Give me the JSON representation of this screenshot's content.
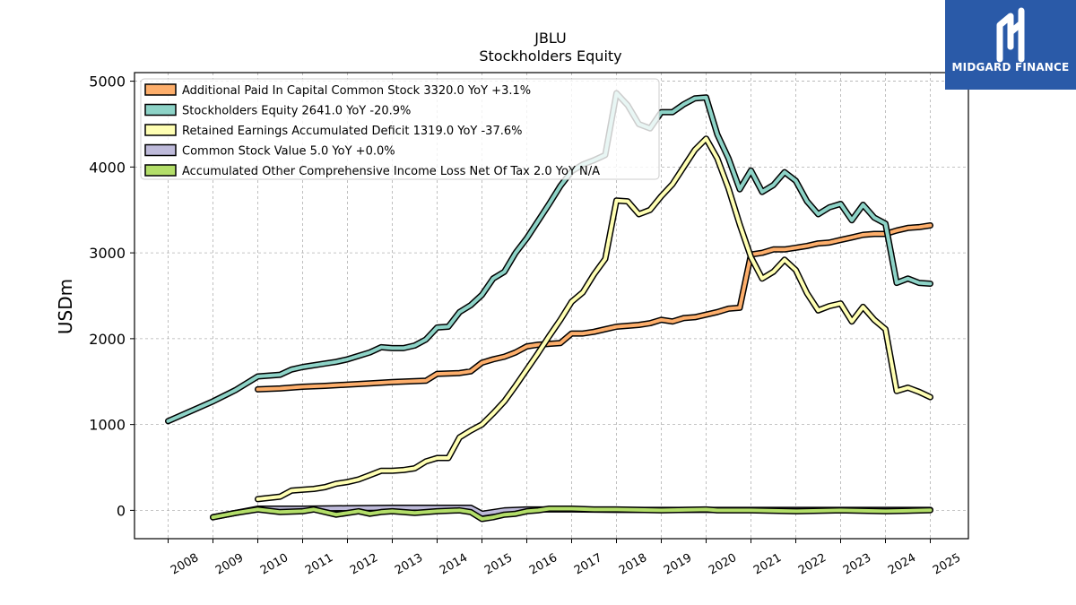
{
  "chart_data": {
    "type": "line",
    "title": "JBLU",
    "subtitle": "Stockholders  Equity",
    "ylabel": "USDm",
    "xlabel": "",
    "x_range": [
      2007.25,
      2025.85
    ],
    "ylim": [
      -330,
      5100
    ],
    "grid": true,
    "legend_position": "top-left",
    "x_ticks": [
      2008,
      2009,
      2010,
      2011,
      2012,
      2013,
      2014,
      2015,
      2016,
      2017,
      2018,
      2019,
      2020,
      2021,
      2022,
      2023,
      2024,
      2025
    ],
    "x_tick_labels": [
      "2008",
      "2009",
      "2010",
      "2011",
      "2012",
      "2013",
      "2014",
      "2015",
      "2016",
      "2017",
      "2018",
      "2019",
      "2020",
      "2021",
      "2022",
      "2023",
      "2024",
      "2025"
    ],
    "y_ticks": [
      0,
      1000,
      2000,
      3000,
      4000,
      5000
    ],
    "y_tick_labels": [
      "0",
      "1000",
      "2000",
      "3000",
      "4000",
      "5000"
    ],
    "series": [
      {
        "name": "Additional Paid In Capital Common Stock",
        "legend": "Additional Paid In Capital Common Stock  3320.0 YoY +3.1%",
        "color": "#fdae6b",
        "points": [
          [
            2010.0,
            1410
          ],
          [
            2010.5,
            1420
          ],
          [
            2011.0,
            1440
          ],
          [
            2011.5,
            1450
          ],
          [
            2012.0,
            1465
          ],
          [
            2012.5,
            1480
          ],
          [
            2013.0,
            1495
          ],
          [
            2013.5,
            1505
          ],
          [
            2013.75,
            1510
          ],
          [
            2014.0,
            1590
          ],
          [
            2014.5,
            1600
          ],
          [
            2014.75,
            1620
          ],
          [
            2015.0,
            1720
          ],
          [
            2015.25,
            1760
          ],
          [
            2015.5,
            1790
          ],
          [
            2015.75,
            1840
          ],
          [
            2016.0,
            1910
          ],
          [
            2016.25,
            1930
          ],
          [
            2016.5,
            1940
          ],
          [
            2016.75,
            1950
          ],
          [
            2017.0,
            2060
          ],
          [
            2017.25,
            2060
          ],
          [
            2017.5,
            2080
          ],
          [
            2017.75,
            2110
          ],
          [
            2018.0,
            2140
          ],
          [
            2018.5,
            2160
          ],
          [
            2018.75,
            2180
          ],
          [
            2019.0,
            2220
          ],
          [
            2019.25,
            2200
          ],
          [
            2019.5,
            2240
          ],
          [
            2019.75,
            2250
          ],
          [
            2020.0,
            2280
          ],
          [
            2020.25,
            2310
          ],
          [
            2020.5,
            2350
          ],
          [
            2020.75,
            2360
          ],
          [
            2021.0,
            2980
          ],
          [
            2021.25,
            3000
          ],
          [
            2021.5,
            3040
          ],
          [
            2021.75,
            3040
          ],
          [
            2022.0,
            3060
          ],
          [
            2022.25,
            3080
          ],
          [
            2022.5,
            3110
          ],
          [
            2022.75,
            3120
          ],
          [
            2023.0,
            3150
          ],
          [
            2023.25,
            3180
          ],
          [
            2023.5,
            3210
          ],
          [
            2023.75,
            3220
          ],
          [
            2024.0,
            3220
          ],
          [
            2024.25,
            3260
          ],
          [
            2024.5,
            3290
          ],
          [
            2024.75,
            3300
          ],
          [
            2025.0,
            3320
          ]
        ]
      },
      {
        "name": "Stockholders Equity",
        "legend": "Stockholders Equity  2641.0 YoY -20.9%",
        "color": "#8dd3c7",
        "points": [
          [
            2008.0,
            1040
          ],
          [
            2009.0,
            1270
          ],
          [
            2009.5,
            1400
          ],
          [
            2010.0,
            1560
          ],
          [
            2010.5,
            1580
          ],
          [
            2010.75,
            1640
          ],
          [
            2011.0,
            1670
          ],
          [
            2011.5,
            1710
          ],
          [
            2011.75,
            1730
          ],
          [
            2012.0,
            1760
          ],
          [
            2012.5,
            1840
          ],
          [
            2012.75,
            1900
          ],
          [
            2013.0,
            1890
          ],
          [
            2013.25,
            1890
          ],
          [
            2013.5,
            1920
          ],
          [
            2013.75,
            1990
          ],
          [
            2014.0,
            2130
          ],
          [
            2014.25,
            2140
          ],
          [
            2014.5,
            2310
          ],
          [
            2014.75,
            2390
          ],
          [
            2015.0,
            2510
          ],
          [
            2015.25,
            2700
          ],
          [
            2015.5,
            2780
          ],
          [
            2015.75,
            3000
          ],
          [
            2016.0,
            3170
          ],
          [
            2016.25,
            3370
          ],
          [
            2016.5,
            3570
          ],
          [
            2016.75,
            3780
          ],
          [
            2017.0,
            3950
          ],
          [
            2017.25,
            4030
          ],
          [
            2017.5,
            4080
          ],
          [
            2017.75,
            4140
          ],
          [
            2018.0,
            4860
          ],
          [
            2018.25,
            4720
          ],
          [
            2018.5,
            4500
          ],
          [
            2018.75,
            4450
          ],
          [
            2019.0,
            4640
          ],
          [
            2019.25,
            4640
          ],
          [
            2019.5,
            4730
          ],
          [
            2019.75,
            4800
          ],
          [
            2020.0,
            4810
          ],
          [
            2020.25,
            4380
          ],
          [
            2020.5,
            4100
          ],
          [
            2020.75,
            3740
          ],
          [
            2021.0,
            3960
          ],
          [
            2021.25,
            3710
          ],
          [
            2021.5,
            3790
          ],
          [
            2021.75,
            3940
          ],
          [
            2022.0,
            3840
          ],
          [
            2022.25,
            3600
          ],
          [
            2022.5,
            3450
          ],
          [
            2022.75,
            3530
          ],
          [
            2023.0,
            3570
          ],
          [
            2023.25,
            3380
          ],
          [
            2023.5,
            3560
          ],
          [
            2023.75,
            3410
          ],
          [
            2024.0,
            3340
          ],
          [
            2024.25,
            2650
          ],
          [
            2024.5,
            2700
          ],
          [
            2024.75,
            2650
          ],
          [
            2025.0,
            2641
          ]
        ]
      },
      {
        "name": "Retained Earnings Accumulated Deficit",
        "legend": "Retained Earnings Accumulated Deficit  1319.0 YoY -37.6%",
        "color": "#ffffb3",
        "points": [
          [
            2010.0,
            130
          ],
          [
            2010.5,
            160
          ],
          [
            2010.75,
            230
          ],
          [
            2011.0,
            240
          ],
          [
            2011.25,
            250
          ],
          [
            2011.5,
            270
          ],
          [
            2011.75,
            310
          ],
          [
            2012.0,
            330
          ],
          [
            2012.25,
            360
          ],
          [
            2012.5,
            410
          ],
          [
            2012.75,
            460
          ],
          [
            2013.0,
            460
          ],
          [
            2013.25,
            470
          ],
          [
            2013.5,
            490
          ],
          [
            2013.75,
            570
          ],
          [
            2014.0,
            610
          ],
          [
            2014.25,
            610
          ],
          [
            2014.5,
            850
          ],
          [
            2014.75,
            930
          ],
          [
            2015.0,
            1000
          ],
          [
            2015.25,
            1130
          ],
          [
            2015.5,
            1270
          ],
          [
            2015.75,
            1450
          ],
          [
            2016.0,
            1640
          ],
          [
            2016.25,
            1830
          ],
          [
            2016.5,
            2030
          ],
          [
            2016.75,
            2220
          ],
          [
            2017.0,
            2430
          ],
          [
            2017.25,
            2540
          ],
          [
            2017.5,
            2750
          ],
          [
            2017.75,
            2930
          ],
          [
            2018.0,
            3610
          ],
          [
            2018.25,
            3600
          ],
          [
            2018.5,
            3450
          ],
          [
            2018.75,
            3500
          ],
          [
            2019.0,
            3660
          ],
          [
            2019.25,
            3800
          ],
          [
            2019.5,
            4000
          ],
          [
            2019.75,
            4200
          ],
          [
            2020.0,
            4330
          ],
          [
            2020.25,
            4100
          ],
          [
            2020.5,
            3750
          ],
          [
            2020.75,
            3330
          ],
          [
            2021.0,
            2950
          ],
          [
            2021.25,
            2700
          ],
          [
            2021.5,
            2780
          ],
          [
            2021.75,
            2920
          ],
          [
            2022.0,
            2800
          ],
          [
            2022.25,
            2530
          ],
          [
            2022.5,
            2330
          ],
          [
            2022.75,
            2380
          ],
          [
            2023.0,
            2410
          ],
          [
            2023.25,
            2200
          ],
          [
            2023.5,
            2370
          ],
          [
            2023.75,
            2220
          ],
          [
            2024.0,
            2110
          ],
          [
            2024.25,
            1390
          ],
          [
            2024.5,
            1430
          ],
          [
            2024.75,
            1380
          ],
          [
            2025.0,
            1319
          ]
        ]
      },
      {
        "name": "Common Stock Value",
        "legend": "Common Stock Value  5.0 YoY +0.0%",
        "color": "#bebada",
        "points": [
          [
            2009.0,
            -80
          ],
          [
            2010.0,
            20
          ],
          [
            2011.0,
            20
          ],
          [
            2012.0,
            25
          ],
          [
            2013.0,
            30
          ],
          [
            2014.0,
            30
          ],
          [
            2014.75,
            30
          ],
          [
            2015.0,
            -40
          ],
          [
            2015.5,
            0
          ],
          [
            2016.0,
            10
          ],
          [
            2017.0,
            10
          ],
          [
            2018.0,
            5
          ],
          [
            2019.0,
            5
          ],
          [
            2020.0,
            5
          ],
          [
            2021.0,
            5
          ],
          [
            2022.0,
            5
          ],
          [
            2023.0,
            5
          ],
          [
            2024.0,
            5
          ],
          [
            2025.0,
            5
          ]
        ]
      },
      {
        "name": "Accumulated Other Comprehensive Income Loss Net Of Tax",
        "legend": "Accumulated Other Comprehensive Income Loss Net Of Tax  2.0 YoY N/A",
        "color": "#b3de69",
        "points": [
          [
            2009.0,
            -80
          ],
          [
            2009.5,
            -30
          ],
          [
            2010.0,
            10
          ],
          [
            2010.5,
            -20
          ],
          [
            2011.0,
            -10
          ],
          [
            2011.25,
            10
          ],
          [
            2011.75,
            -50
          ],
          [
            2012.0,
            -30
          ],
          [
            2012.25,
            -10
          ],
          [
            2012.5,
            -40
          ],
          [
            2012.75,
            -20
          ],
          [
            2013.0,
            -10
          ],
          [
            2013.5,
            -30
          ],
          [
            2014.0,
            -10
          ],
          [
            2014.5,
            0
          ],
          [
            2014.75,
            -20
          ],
          [
            2015.0,
            -100
          ],
          [
            2015.25,
            -80
          ],
          [
            2015.5,
            -50
          ],
          [
            2015.75,
            -40
          ],
          [
            2016.0,
            -10
          ],
          [
            2016.25,
            0
          ],
          [
            2016.5,
            20
          ],
          [
            2017.0,
            20
          ],
          [
            2017.5,
            10
          ],
          [
            2018.0,
            10
          ],
          [
            2019.0,
            0
          ],
          [
            2020.0,
            10
          ],
          [
            2020.25,
            0
          ],
          [
            2021.0,
            0
          ],
          [
            2022.0,
            -10
          ],
          [
            2023.0,
            0
          ],
          [
            2024.0,
            -10
          ],
          [
            2024.5,
            -5
          ],
          [
            2025.0,
            2
          ]
        ]
      }
    ]
  },
  "logo": {
    "brand": "MIDGARD FINANCE",
    "background": "#2a5aa8",
    "icon": "midgard-logo-icon"
  }
}
